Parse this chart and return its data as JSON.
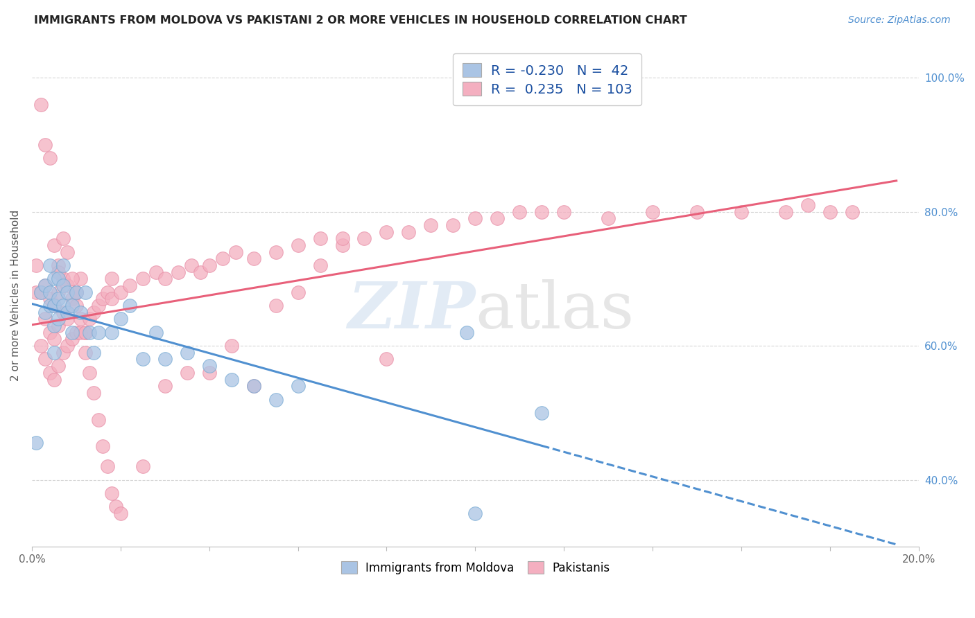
{
  "title": "IMMIGRANTS FROM MOLDOVA VS PAKISTANI 2 OR MORE VEHICLES IN HOUSEHOLD CORRELATION CHART",
  "source": "Source: ZipAtlas.com",
  "ylabel": "2 or more Vehicles in Household",
  "x_min": 0.0,
  "x_max": 0.2,
  "y_min": 0.3,
  "y_max": 1.05,
  "x_ticks": [
    0.0,
    0.02,
    0.04,
    0.06,
    0.08,
    0.1,
    0.12,
    0.14,
    0.16,
    0.18,
    0.2
  ],
  "x_tick_labels_show": [
    "0.0%",
    "20.0%"
  ],
  "y_ticks": [
    0.4,
    0.6,
    0.8,
    1.0
  ],
  "y_tick_labels": [
    "40.0%",
    "60.0%",
    "80.0%",
    "100.0%"
  ],
  "legend_R_moldova": "-0.230",
  "legend_N_moldova": "42",
  "legend_R_pakistani": "0.235",
  "legend_N_pakistani": "103",
  "moldova_color": "#aac4e4",
  "moldova_edge_color": "#7aacd4",
  "pakistani_color": "#f4afc0",
  "pakistani_edge_color": "#e890a8",
  "moldova_line_color": "#5090d0",
  "pakistani_line_color": "#e8607a",
  "moldova_points_x": [
    0.001,
    0.002,
    0.003,
    0.003,
    0.004,
    0.004,
    0.004,
    0.005,
    0.005,
    0.005,
    0.005,
    0.006,
    0.006,
    0.006,
    0.007,
    0.007,
    0.007,
    0.008,
    0.008,
    0.009,
    0.009,
    0.01,
    0.011,
    0.012,
    0.013,
    0.014,
    0.015,
    0.018,
    0.02,
    0.022,
    0.025,
    0.028,
    0.03,
    0.035,
    0.04,
    0.045,
    0.05,
    0.055,
    0.06,
    0.098,
    0.1,
    0.115
  ],
  "moldova_points_y": [
    0.455,
    0.68,
    0.65,
    0.69,
    0.68,
    0.72,
    0.66,
    0.7,
    0.66,
    0.63,
    0.59,
    0.67,
    0.7,
    0.64,
    0.66,
    0.69,
    0.72,
    0.65,
    0.68,
    0.66,
    0.62,
    0.68,
    0.65,
    0.68,
    0.62,
    0.59,
    0.62,
    0.62,
    0.64,
    0.66,
    0.58,
    0.62,
    0.58,
    0.59,
    0.57,
    0.55,
    0.54,
    0.52,
    0.54,
    0.62,
    0.35,
    0.5
  ],
  "pakistani_points_x": [
    0.001,
    0.001,
    0.002,
    0.002,
    0.003,
    0.003,
    0.003,
    0.004,
    0.004,
    0.004,
    0.005,
    0.005,
    0.005,
    0.006,
    0.006,
    0.006,
    0.006,
    0.007,
    0.007,
    0.007,
    0.008,
    0.008,
    0.008,
    0.009,
    0.009,
    0.01,
    0.01,
    0.011,
    0.011,
    0.012,
    0.013,
    0.014,
    0.015,
    0.016,
    0.017,
    0.018,
    0.02,
    0.022,
    0.025,
    0.028,
    0.03,
    0.033,
    0.036,
    0.038,
    0.04,
    0.043,
    0.046,
    0.05,
    0.055,
    0.06,
    0.065,
    0.07,
    0.075,
    0.08,
    0.085,
    0.09,
    0.095,
    0.1,
    0.105,
    0.11,
    0.115,
    0.12,
    0.13,
    0.14,
    0.15,
    0.16,
    0.17,
    0.175,
    0.18,
    0.185,
    0.002,
    0.003,
    0.004,
    0.005,
    0.006,
    0.007,
    0.008,
    0.009,
    0.01,
    0.011,
    0.012,
    0.013,
    0.014,
    0.015,
    0.016,
    0.017,
    0.018,
    0.019,
    0.02,
    0.025,
    0.03,
    0.035,
    0.04,
    0.045,
    0.05,
    0.055,
    0.06,
    0.065,
    0.07,
    0.08,
    0.01,
    0.012,
    0.018
  ],
  "pakistani_points_y": [
    0.68,
    0.72,
    0.6,
    0.68,
    0.58,
    0.64,
    0.69,
    0.56,
    0.62,
    0.67,
    0.55,
    0.61,
    0.66,
    0.57,
    0.63,
    0.68,
    0.72,
    0.59,
    0.65,
    0.7,
    0.6,
    0.64,
    0.69,
    0.61,
    0.67,
    0.62,
    0.68,
    0.64,
    0.7,
    0.62,
    0.64,
    0.65,
    0.66,
    0.67,
    0.68,
    0.67,
    0.68,
    0.69,
    0.7,
    0.71,
    0.7,
    0.71,
    0.72,
    0.71,
    0.72,
    0.73,
    0.74,
    0.73,
    0.74,
    0.75,
    0.76,
    0.75,
    0.76,
    0.77,
    0.77,
    0.78,
    0.78,
    0.79,
    0.79,
    0.8,
    0.8,
    0.8,
    0.79,
    0.8,
    0.8,
    0.8,
    0.8,
    0.81,
    0.8,
    0.8,
    0.96,
    0.9,
    0.88,
    0.75,
    0.71,
    0.76,
    0.74,
    0.7,
    0.66,
    0.62,
    0.59,
    0.56,
    0.53,
    0.49,
    0.45,
    0.42,
    0.38,
    0.36,
    0.35,
    0.42,
    0.54,
    0.56,
    0.56,
    0.6,
    0.54,
    0.66,
    0.68,
    0.72,
    0.76,
    0.58,
    0.68,
    0.62,
    0.7
  ]
}
